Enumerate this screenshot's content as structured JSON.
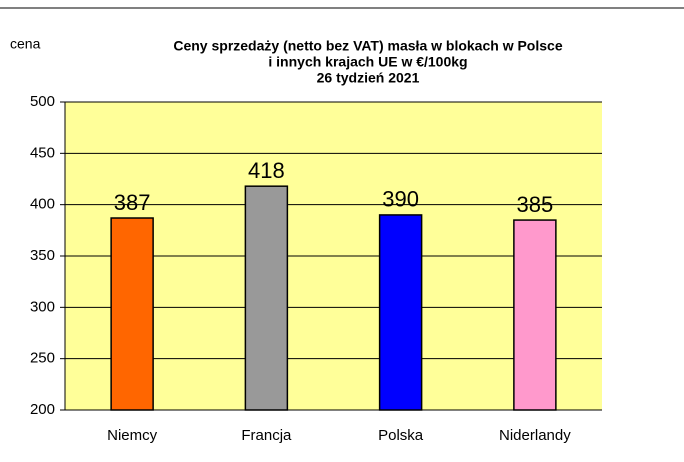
{
  "chart_data": {
    "type": "bar",
    "title": [
      "Ceny sprzedaży (netto bez VAT) masła  w blokach w Polsce",
      "i  innych krajach UE w €/100kg",
      "26  tydzień 2021"
    ],
    "y_label": "cena",
    "categories": [
      "Niemcy",
      "Francja",
      "Polska",
      "Niderlandy"
    ],
    "values": [
      387,
      418,
      390,
      385
    ],
    "colors": [
      "#ff6600",
      "#999999",
      "#0000ff",
      "#ff99cc"
    ],
    "ylim": [
      200,
      500
    ],
    "yticks": [
      200,
      250,
      300,
      350,
      400,
      450,
      500
    ],
    "grid": true,
    "plot_background": "#ffff99"
  }
}
